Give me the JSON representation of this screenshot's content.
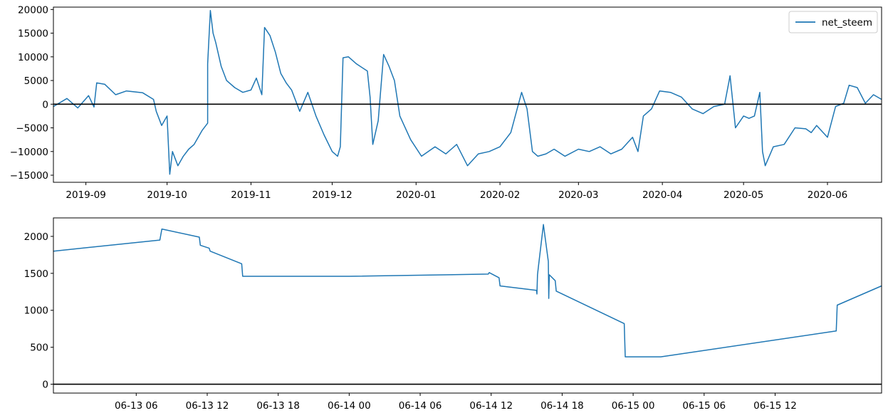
{
  "chart_data": [
    {
      "type": "line",
      "title": "",
      "xlabel": "",
      "ylabel": "",
      "x_axis_type": "date",
      "xlim": [
        "2019-08-20",
        "2020-06-21"
      ],
      "ylim": [
        -16500,
        20500
      ],
      "y_ticks": [
        -15000,
        -10000,
        -5000,
        0,
        5000,
        10000,
        15000,
        20000
      ],
      "y_tick_labels": [
        "−15000",
        "−10000",
        "−5000",
        "0",
        "5000",
        "10000",
        "15000",
        "20000"
      ],
      "x_ticks": [
        "2019-09-01",
        "2019-10-01",
        "2019-11-01",
        "2019-12-01",
        "2020-01-01",
        "2020-02-01",
        "2020-03-01",
        "2020-04-01",
        "2020-05-01",
        "2020-06-01"
      ],
      "x_tick_labels": [
        "2019-09",
        "2019-10",
        "2019-11",
        "2019-12",
        "2020-01",
        "2020-02",
        "2020-03",
        "2020-04",
        "2020-05",
        "2020-06"
      ],
      "legend": {
        "position": "upper right",
        "entries": [
          "net_steem"
        ]
      },
      "reference_line": {
        "y": 0,
        "color": "#000000"
      },
      "series": [
        {
          "name": "net_steem",
          "color": "#1f77b4",
          "x": [
            "2019-08-20",
            "2019-08-25",
            "2019-08-29",
            "2019-09-02",
            "2019-09-04",
            "2019-09-05",
            "2019-09-08",
            "2019-09-12",
            "2019-09-16",
            "2019-09-22",
            "2019-09-26",
            "2019-09-27",
            "2019-09-29",
            "2019-10-01",
            "2019-10-02",
            "2019-10-03",
            "2019-10-05",
            "2019-10-07",
            "2019-10-09",
            "2019-10-11",
            "2019-10-14",
            "2019-10-16",
            "2019-10-16",
            "2019-10-17",
            "2019-10-18",
            "2019-10-19",
            "2019-10-21",
            "2019-10-23",
            "2019-10-26",
            "2019-10-29",
            "2019-11-01",
            "2019-11-03",
            "2019-11-05",
            "2019-11-06",
            "2019-11-08",
            "2019-11-10",
            "2019-11-12",
            "2019-11-14",
            "2019-11-16",
            "2019-11-19",
            "2019-11-22",
            "2019-11-25",
            "2019-11-28",
            "2019-12-01",
            "2019-12-03",
            "2019-12-04",
            "2019-12-05",
            "2019-12-07",
            "2019-12-10",
            "2019-12-14",
            "2019-12-15",
            "2019-12-16",
            "2019-12-18",
            "2019-12-20",
            "2019-12-22",
            "2019-12-24",
            "2019-12-26",
            "2019-12-30",
            "2020-01-03",
            "2020-01-08",
            "2020-01-12",
            "2020-01-16",
            "2020-01-20",
            "2020-01-24",
            "2020-01-28",
            "2020-02-01",
            "2020-02-05",
            "2020-02-09",
            "2020-02-11",
            "2020-02-13",
            "2020-02-15",
            "2020-02-18",
            "2020-02-21",
            "2020-02-25",
            "2020-03-01",
            "2020-03-05",
            "2020-03-09",
            "2020-03-13",
            "2020-03-17",
            "2020-03-21",
            "2020-03-23",
            "2020-03-25",
            "2020-03-28",
            "2020-03-31",
            "2020-04-04",
            "2020-04-08",
            "2020-04-12",
            "2020-04-16",
            "2020-04-20",
            "2020-04-24",
            "2020-04-26",
            "2020-04-28",
            "2020-05-01",
            "2020-05-03",
            "2020-05-05",
            "2020-05-07",
            "2020-05-08",
            "2020-05-09",
            "2020-05-12",
            "2020-05-16",
            "2020-05-20",
            "2020-05-24",
            "2020-05-26",
            "2020-05-28",
            "2020-06-01",
            "2020-06-04",
            "2020-06-07",
            "2020-06-09",
            "2020-06-12",
            "2020-06-15",
            "2020-06-18",
            "2020-06-21"
          ],
          "y": [
            -500,
            1200,
            -800,
            1800,
            -600,
            4500,
            4200,
            2000,
            2800,
            2400,
            1000,
            -1500,
            -4500,
            -2500,
            -14800,
            -10000,
            -13000,
            -11000,
            -9500,
            -8500,
            -5500,
            -4000,
            8500,
            19800,
            15000,
            13000,
            8000,
            5000,
            3500,
            2500,
            3000,
            5500,
            2000,
            16200,
            14500,
            11000,
            6500,
            4500,
            3000,
            -1500,
            2500,
            -2500,
            -6500,
            -10000,
            -11000,
            -9000,
            9800,
            10000,
            8500,
            7000,
            1500,
            -8500,
            -3500,
            10500,
            8000,
            5000,
            -2500,
            -7500,
            -11000,
            -9000,
            -10500,
            -8500,
            -13000,
            -10500,
            -10000,
            -9000,
            -6000,
            2500,
            -1000,
            -10000,
            -11000,
            -10500,
            -9500,
            -11000,
            -9500,
            -10000,
            -9000,
            -10500,
            -9500,
            -7000,
            -10000,
            -2500,
            -1000,
            2800,
            2500,
            1500,
            -1000,
            -2000,
            -500,
            0,
            6000,
            -5000,
            -2500,
            -3000,
            -2500,
            2500,
            -10000,
            -13000,
            -9000,
            -8500,
            -5000,
            -5200,
            -6000,
            -4500,
            -7000,
            -500,
            200,
            4000,
            3500,
            200,
            2000,
            1000
          ]
        }
      ]
    },
    {
      "type": "line",
      "title": "",
      "xlabel": "",
      "ylabel": "",
      "x_axis_type": "datetime",
      "xlim": [
        "2020-06-12 23:00",
        "2020-06-15 21:00"
      ],
      "ylim": [
        -120,
        2250
      ],
      "y_ticks": [
        0,
        500,
        1000,
        1500,
        2000
      ],
      "y_tick_labels": [
        "0",
        "500",
        "1000",
        "1500",
        "2000"
      ],
      "x_ticks": [
        "2020-06-13 06:00",
        "2020-06-13 12:00",
        "2020-06-13 18:00",
        "2020-06-14 00:00",
        "2020-06-14 06:00",
        "2020-06-14 12:00",
        "2020-06-14 18:00",
        "2020-06-15 00:00",
        "2020-06-15 06:00",
        "2020-06-15 12:00"
      ],
      "x_tick_labels": [
        "06-13 06",
        "06-13 12",
        "06-13 18",
        "06-14 00",
        "06-14 06",
        "06-14 12",
        "06-14 18",
        "06-15 00",
        "06-15 06",
        "06-15 12"
      ],
      "reference_line": {
        "y": 0,
        "color": "#000000"
      },
      "series": [
        {
          "color": "#1f77b4",
          "x": [
            "2020-06-12 23:00",
            "2020-06-13 08:00",
            "2020-06-13 08:10",
            "2020-06-13 11:20",
            "2020-06-13 11:25",
            "2020-06-13 12:10",
            "2020-06-13 12:15",
            "2020-06-13 14:55",
            "2020-06-13 15:00",
            "2020-06-14 00:00",
            "2020-06-14 11:45",
            "2020-06-14 11:50",
            "2020-06-14 12:40",
            "2020-06-14 12:45",
            "2020-06-14 15:50",
            "2020-06-14 15:52",
            "2020-06-14 15:55",
            "2020-06-14 16:00",
            "2020-06-14 16:25",
            "2020-06-14 16:50",
            "2020-06-14 16:52",
            "2020-06-14 16:55",
            "2020-06-14 17:25",
            "2020-06-14 17:30",
            "2020-06-14 23:15",
            "2020-06-14 23:20",
            "2020-06-15 02:20",
            "2020-06-15 17:10",
            "2020-06-15 17:15",
            "2020-06-15 21:00"
          ],
          "y": [
            1800,
            1950,
            2100,
            1990,
            1880,
            1840,
            1800,
            1630,
            1460,
            1460,
            1490,
            1510,
            1440,
            1330,
            1270,
            1220,
            1480,
            1600,
            2160,
            1660,
            1160,
            1480,
            1400,
            1260,
            820,
            370,
            370,
            720,
            1070,
            1330
          ]
        }
      ]
    }
  ]
}
